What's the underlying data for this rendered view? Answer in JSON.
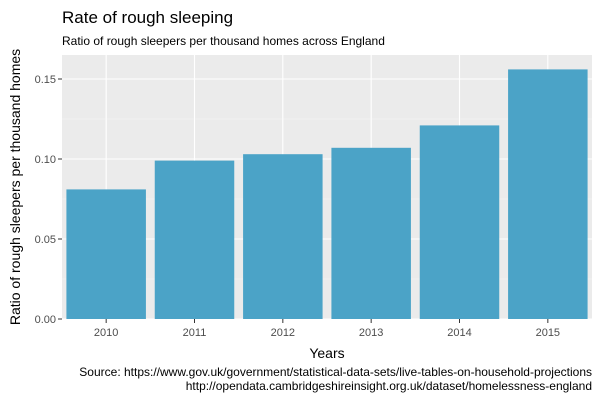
{
  "chart_data": {
    "type": "bar",
    "title": "Rate of rough sleeping",
    "subtitle": "Ratio of rough sleepers per thousand homes across England",
    "xlabel": "Years",
    "ylabel": "Ratio of rough sleepers per thousand homes",
    "categories": [
      "2010",
      "2011",
      "2012",
      "2013",
      "2014",
      "2015"
    ],
    "values": [
      0.081,
      0.099,
      0.103,
      0.107,
      0.121,
      0.156
    ],
    "ylim": [
      0,
      0.165
    ],
    "yticks": [
      0.0,
      0.05,
      0.1,
      0.15
    ],
    "ytick_labels": [
      "0.00",
      "0.05",
      "0.10",
      "0.15"
    ],
    "grid": true,
    "bar_color": "#4BA3C7",
    "panel_background": "#EBEBEB",
    "caption_lines": [
      "Source: https://www.gov.uk/government/statistical-data-sets/live-tables-on-household-projections",
      "http://opendata.cambridgeshireinsight.org.uk/dataset/homelessness-england"
    ]
  }
}
